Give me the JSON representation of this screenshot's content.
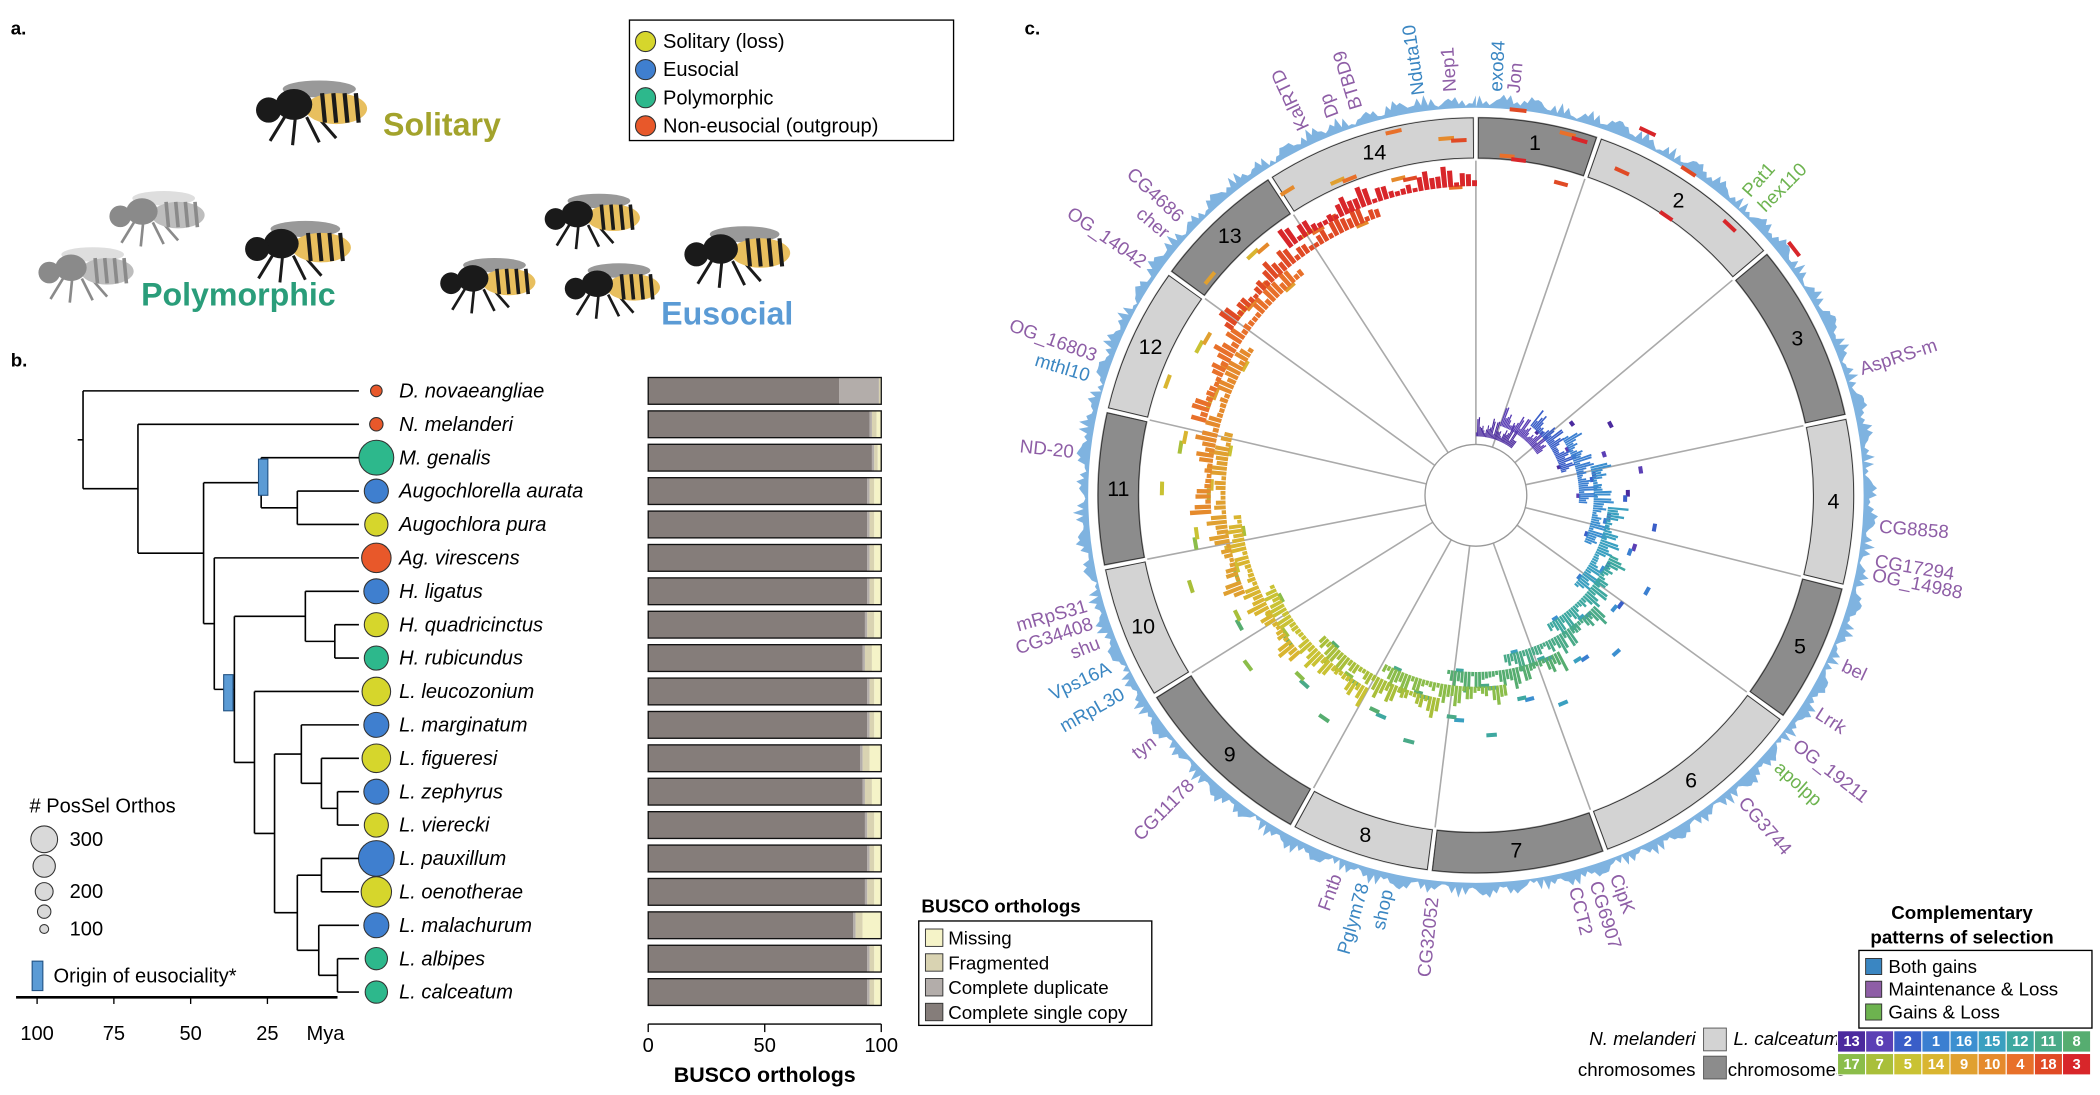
{
  "panels": {
    "a": "a.",
    "b": "b.",
    "c": "c."
  },
  "panel_a": {
    "legend": [
      {
        "label": "Solitary (loss)",
        "color": "#d6d62c"
      },
      {
        "label": "Eusocial",
        "color": "#3f7fcf"
      },
      {
        "label": "Polymorphic",
        "color": "#2db88c"
      },
      {
        "label": "Non-eusocial (outgroup)",
        "color": "#e8582a"
      }
    ],
    "labels": [
      {
        "text": "Solitary",
        "color": "#a3a32c"
      },
      {
        "text": "Polymorphic",
        "color": "#2a9d7a"
      },
      {
        "text": "Eusocial",
        "color": "#5b9bd5"
      }
    ]
  },
  "panel_b": {
    "species": [
      {
        "name": "D. novaeangliae",
        "behavior": "Non-eusocial (outgroup)",
        "possel": 130,
        "busco": [
          82,
          17,
          0.5,
          0.5
        ]
      },
      {
        "name": "N. melanderi",
        "behavior": "Non-eusocial (outgroup)",
        "possel": 150,
        "busco": [
          95,
          1,
          2,
          2
        ]
      },
      {
        "name": "M. genalis",
        "behavior": "Polymorphic",
        "possel": 390,
        "busco": [
          96,
          1,
          1.5,
          1.5
        ]
      },
      {
        "name": "Augochlorella aurata",
        "behavior": "Eusocial",
        "possel": 270,
        "busco": [
          94,
          1,
          2,
          3
        ]
      },
      {
        "name": "Augochlora pura",
        "behavior": "Solitary (loss)",
        "possel": 260,
        "busco": [
          94,
          1,
          2,
          3
        ]
      },
      {
        "name": "Ag. virescens",
        "behavior": "Non-eusocial (outgroup)",
        "possel": 330,
        "busco": [
          94,
          1,
          2,
          3
        ]
      },
      {
        "name": "H. ligatus",
        "behavior": "Eusocial",
        "possel": 280,
        "busco": [
          94,
          1,
          2,
          3
        ]
      },
      {
        "name": "H. quadricinctus",
        "behavior": "Solitary (loss)",
        "possel": 270,
        "busco": [
          93,
          1,
          3,
          3
        ]
      },
      {
        "name": "H. rubicundus",
        "behavior": "Polymorphic",
        "possel": 270,
        "busco": [
          92,
          1,
          3,
          4
        ]
      },
      {
        "name": "L. leucozonium",
        "behavior": "Solitary (loss)",
        "possel": 320,
        "busco": [
          94,
          1,
          2,
          3
        ]
      },
      {
        "name": "L. marginatum",
        "behavior": "Eusocial",
        "possel": 280,
        "busco": [
          94,
          1,
          2,
          3
        ]
      },
      {
        "name": "L. figueresi",
        "behavior": "Solitary (loss)",
        "possel": 320,
        "busco": [
          91,
          1,
          3,
          5
        ]
      },
      {
        "name": "L. zephyrus",
        "behavior": "Eusocial",
        "possel": 280,
        "busco": [
          92,
          1,
          3,
          4
        ]
      },
      {
        "name": "L. vierecki",
        "behavior": "Solitary (loss)",
        "possel": 270,
        "busco": [
          93,
          1,
          3,
          3
        ]
      },
      {
        "name": "L. pauxillum",
        "behavior": "Eusocial",
        "possel": 400,
        "busco": [
          94,
          1,
          2,
          3
        ]
      },
      {
        "name": "L. oenotherae",
        "behavior": "Solitary (loss)",
        "possel": 340,
        "busco": [
          93,
          1,
          3,
          3
        ]
      },
      {
        "name": "L. malachurum",
        "behavior": "Eusocial",
        "possel": 280,
        "busco": [
          88,
          1,
          3,
          8
        ]
      },
      {
        "name": "L. albipes",
        "behavior": "Polymorphic",
        "possel": 250,
        "busco": [
          94,
          1,
          2,
          3
        ]
      },
      {
        "name": "L. calceatum",
        "behavior": "Polymorphic",
        "possel": 250,
        "busco": [
          94,
          1,
          2,
          3
        ]
      }
    ],
    "busco_legend": {
      "title": "BUSCO orthologs",
      "items": [
        {
          "label": "Missing",
          "color": "#f5f3c8"
        },
        {
          "label": "Fragmented",
          "color": "#d9d3b2"
        },
        {
          "label": "Complete duplicate",
          "color": "#b3adaa"
        },
        {
          "label": "Complete single copy",
          "color": "#857d7a"
        }
      ]
    },
    "busco_axis": {
      "label": "BUSCO orthologs",
      "xlim": [
        0,
        100
      ],
      "xticks": [
        0,
        50,
        100
      ]
    },
    "size_legend": {
      "title": "# PosSel Orthos",
      "sizes": [
        {
          "value": 300,
          "label": "300"
        },
        {
          "value": 250,
          "label": null
        },
        {
          "value": 200,
          "label": "200"
        },
        {
          "value": 150,
          "label": null
        },
        {
          "value": 100,
          "label": "100"
        }
      ]
    },
    "origin_label": "Origin of eusociality*",
    "time_axis": {
      "xticks": [
        100,
        75,
        50,
        25
      ],
      "unit": "Mya"
    }
  },
  "panel_c": {
    "chromosomes": {
      "labels": [
        1,
        2,
        3,
        4,
        5,
        6,
        7,
        8,
        9,
        10,
        11,
        12,
        13,
        14
      ],
      "sizes": [
        19,
        31,
        28,
        26,
        22,
        34,
        27,
        22,
        29,
        21,
        24,
        23,
        21,
        33
      ],
      "colors": [
        "#d3d3d3",
        "#8c8c8c"
      ]
    },
    "genes": [
      {
        "name": "KalRTD",
        "pattern": "Maintenance & Loss"
      },
      {
        "name": "Dp",
        "pattern": "Maintenance & Loss"
      },
      {
        "name": "BTBD9",
        "pattern": "Maintenance & Loss"
      },
      {
        "name": "Nduta10",
        "pattern": "Both gains"
      },
      {
        "name": "Nep1",
        "pattern": "Maintenance & Loss"
      },
      {
        "name": "exo84",
        "pattern": "Both gains"
      },
      {
        "name": "Jon",
        "pattern": "Maintenance & Loss"
      },
      {
        "name": "Pat1",
        "pattern": "Gains & Loss"
      },
      {
        "name": "hex110",
        "pattern": "Gains & Loss"
      },
      {
        "name": "AspRS-m",
        "pattern": "Maintenance & Loss"
      },
      {
        "name": "CG8858",
        "pattern": "Maintenance & Loss"
      },
      {
        "name": "CG17294",
        "pattern": "Maintenance & Loss"
      },
      {
        "name": "OG_14988",
        "pattern": "Maintenance & Loss"
      },
      {
        "name": "bel",
        "pattern": "Maintenance & Loss"
      },
      {
        "name": "Lrrk",
        "pattern": "Maintenance & Loss"
      },
      {
        "name": "OG_19211",
        "pattern": "Maintenance & Loss"
      },
      {
        "name": "apolpp",
        "pattern": "Gains & Loss"
      },
      {
        "name": "CG3744",
        "pattern": "Maintenance & Loss"
      },
      {
        "name": "CipK",
        "pattern": "Maintenance & Loss"
      },
      {
        "name": "CG6907",
        "pattern": "Maintenance & Loss"
      },
      {
        "name": "CCT2",
        "pattern": "Maintenance & Loss"
      },
      {
        "name": "CG32052",
        "pattern": "Maintenance & Loss"
      },
      {
        "name": "shop",
        "pattern": "Both gains"
      },
      {
        "name": "Pglym78",
        "pattern": "Both gains"
      },
      {
        "name": "Fntb",
        "pattern": "Maintenance & Loss"
      },
      {
        "name": "CG11178",
        "pattern": "Maintenance & Loss"
      },
      {
        "name": "tyn",
        "pattern": "Maintenance & Loss"
      },
      {
        "name": "mRpL30",
        "pattern": "Both gains"
      },
      {
        "name": "Vps16A",
        "pattern": "Both gains"
      },
      {
        "name": "shu",
        "pattern": "Maintenance & Loss"
      },
      {
        "name": "CG34408",
        "pattern": "Maintenance & Loss"
      },
      {
        "name": "mRpS31",
        "pattern": "Maintenance & Loss"
      },
      {
        "name": "ND-20",
        "pattern": "Maintenance & Loss"
      },
      {
        "name": "mthl10",
        "pattern": "Both gains"
      },
      {
        "name": "OG_16803",
        "pattern": "Maintenance & Loss"
      },
      {
        "name": "OG_14042",
        "pattern": "Maintenance & Loss"
      },
      {
        "name": "cher",
        "pattern": "Maintenance & Loss"
      },
      {
        "name": "CG4686",
        "pattern": "Maintenance & Loss"
      }
    ],
    "selection_legend": {
      "title": [
        "Complementary",
        "patterns of selection"
      ],
      "items": [
        {
          "label": "Both gains",
          "color": "#3a86c2"
        },
        {
          "label": "Maintenance & Loss",
          "color": "#8e5ea6"
        },
        {
          "label": "Gains & Loss",
          "color": "#6db34f"
        }
      ]
    },
    "nmel_label": "N. melanderi",
    "lcal_label": "L. calceatum",
    "chrom_word": "chromosomes",
    "lcal_chromosomes": [
      {
        "label": 13,
        "color": "#4b2a9e"
      },
      {
        "label": 6,
        "color": "#5b3fb5"
      },
      {
        "label": 2,
        "color": "#3a5ec8"
      },
      {
        "label": 1,
        "color": "#3b7fd1"
      },
      {
        "label": 16,
        "color": "#3c8fd0"
      },
      {
        "label": 15,
        "color": "#3aa0c0"
      },
      {
        "label": 12,
        "color": "#3ea8a0"
      },
      {
        "label": 11,
        "color": "#4aaa88"
      },
      {
        "label": 8,
        "color": "#56ad70"
      },
      {
        "label": 17,
        "color": "#8bbd4a"
      },
      {
        "label": 7,
        "color": "#a9bf3a"
      },
      {
        "label": 5,
        "color": "#c9c233"
      },
      {
        "label": 14,
        "color": "#d9b530"
      },
      {
        "label": 9,
        "color": "#e0a030"
      },
      {
        "label": 10,
        "color": "#e58a2c"
      },
      {
        "label": 4,
        "color": "#e8702a"
      },
      {
        "label": 18,
        "color": "#e04a25"
      },
      {
        "label": 3,
        "color": "#d8262a"
      }
    ]
  }
}
